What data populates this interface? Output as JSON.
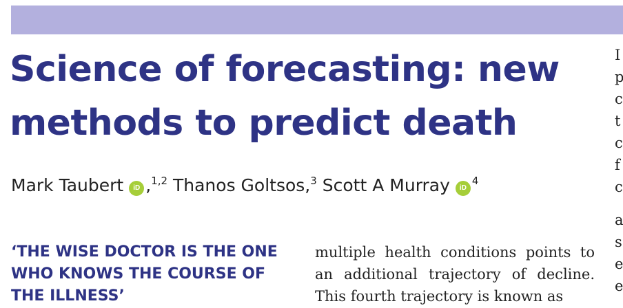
{
  "article": {
    "title": "Science of forecasting: new methods to predict death",
    "authors": [
      {
        "name": "Mark Taubert",
        "affil": "1,2",
        "orcid_label": "iD"
      },
      {
        "name": "Thanos Goltsos,",
        "affil": "3"
      },
      {
        "name": "Scott A Murray",
        "affil": "4",
        "orcid_label": "iD"
      }
    ],
    "section_heading": "‘THE WISE DOCTOR IS THE ONE WHO KNOWS THE COURSE OF THE ILLNESS’",
    "body_text": "multiple health conditions points to an additional trajectory of decline. This fourth trajectory is known as",
    "right_column_fragments": [
      "I",
      "p",
      "c",
      "t",
      "c",
      "f",
      "c",
      "a",
      "s",
      "e",
      "e"
    ]
  },
  "colors": {
    "band": "#b3b0de",
    "title": "#2e3385",
    "orcid": "#a6ce39"
  }
}
